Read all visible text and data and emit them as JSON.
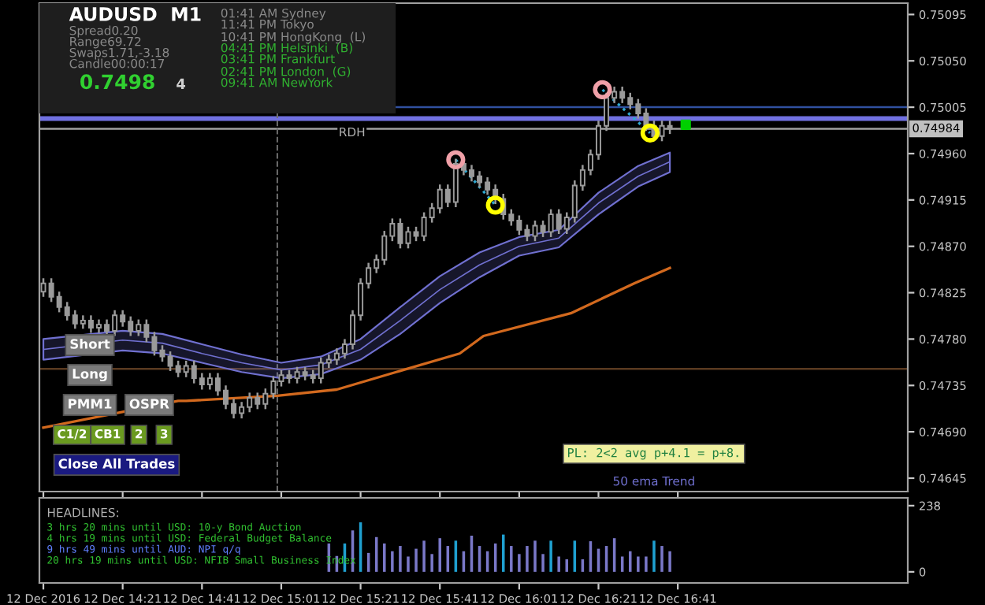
{
  "chart_data": [
    {
      "type": "candlestick",
      "color": "#9a9a9a",
      "x": [
        "2016-12-12T14:01",
        "2016-12-12T14:03",
        "2016-12-12T14:05",
        "2016-12-12T14:07",
        "2016-12-12T14:09",
        "2016-12-12T14:11",
        "2016-12-12T14:13",
        "2016-12-12T14:15",
        "2016-12-12T14:17",
        "2016-12-12T14:19",
        "2016-12-12T14:21",
        "2016-12-12T14:23",
        "2016-12-12T14:25",
        "2016-12-12T14:27",
        "2016-12-12T14:29",
        "2016-12-12T14:31",
        "2016-12-12T14:33",
        "2016-12-12T14:35",
        "2016-12-12T14:37",
        "2016-12-12T14:39",
        "2016-12-12T14:41",
        "2016-12-12T14:43",
        "2016-12-12T14:45",
        "2016-12-12T14:47",
        "2016-12-12T14:49",
        "2016-12-12T14:51",
        "2016-12-12T14:53",
        "2016-12-12T14:55",
        "2016-12-12T14:57",
        "2016-12-12T14:59",
        "2016-12-12T15:01",
        "2016-12-12T15:03",
        "2016-12-12T15:05",
        "2016-12-12T15:07",
        "2016-12-12T15:09",
        "2016-12-12T15:11",
        "2016-12-12T15:13",
        "2016-12-12T15:15",
        "2016-12-12T15:17",
        "2016-12-12T15:19",
        "2016-12-12T15:21",
        "2016-12-12T15:23",
        "2016-12-12T15:25",
        "2016-12-12T15:27",
        "2016-12-12T15:29",
        "2016-12-12T15:31",
        "2016-12-12T15:33",
        "2016-12-12T15:35",
        "2016-12-12T15:37",
        "2016-12-12T15:39",
        "2016-12-12T15:41",
        "2016-12-12T15:43",
        "2016-12-12T15:45",
        "2016-12-12T15:47",
        "2016-12-12T15:49",
        "2016-12-12T15:51",
        "2016-12-12T15:53",
        "2016-12-12T15:55",
        "2016-12-12T15:57",
        "2016-12-12T15:59",
        "2016-12-12T16:01",
        "2016-12-12T16:03",
        "2016-12-12T16:05",
        "2016-12-12T16:07",
        "2016-12-12T16:09",
        "2016-12-12T16:11",
        "2016-12-12T16:13",
        "2016-12-12T16:15",
        "2016-12-12T16:17",
        "2016-12-12T16:19",
        "2016-12-12T16:21",
        "2016-12-12T16:23",
        "2016-12-12T16:25",
        "2016-12-12T16:27",
        "2016-12-12T16:29",
        "2016-12-12T16:31",
        "2016-12-12T16:33",
        "2016-12-12T16:35",
        "2016-12-12T16:37",
        "2016-12-12T16:39"
      ],
      "ohlc": [
        [
          0.74826,
          0.74839,
          0.74821,
          0.74834
        ],
        [
          0.74834,
          0.74839,
          0.74816,
          0.74821
        ],
        [
          0.74821,
          0.74826,
          0.74806,
          0.74811
        ],
        [
          0.74811,
          0.74816,
          0.74798,
          0.74803
        ],
        [
          0.74803,
          0.74808,
          0.7479,
          0.74795
        ],
        [
          0.74795,
          0.74803,
          0.7479,
          0.74798
        ],
        [
          0.74798,
          0.74803,
          0.74786,
          0.74791
        ],
        [
          0.74791,
          0.74799,
          0.74786,
          0.74794
        ],
        [
          0.74794,
          0.74799,
          0.74783,
          0.74788
        ],
        [
          0.74788,
          0.74808,
          0.74783,
          0.74803
        ],
        [
          0.74803,
          0.74808,
          0.74792,
          0.74797
        ],
        [
          0.74797,
          0.74802,
          0.74783,
          0.74788
        ],
        [
          0.74788,
          0.74799,
          0.74783,
          0.74794
        ],
        [
          0.74794,
          0.74799,
          0.74777,
          0.74782
        ],
        [
          0.74782,
          0.74787,
          0.74764,
          0.74769
        ],
        [
          0.74769,
          0.74774,
          0.74758,
          0.74763
        ],
        [
          0.74763,
          0.74768,
          0.74749,
          0.74754
        ],
        [
          0.74754,
          0.74759,
          0.74743,
          0.74748
        ],
        [
          0.74748,
          0.74759,
          0.74743,
          0.74754
        ],
        [
          0.74754,
          0.74759,
          0.74737,
          0.74742
        ],
        [
          0.74742,
          0.74747,
          0.74731,
          0.74736
        ],
        [
          0.74736,
          0.74747,
          0.74731,
          0.74742
        ],
        [
          0.74742,
          0.74747,
          0.74725,
          0.7473
        ],
        [
          0.7473,
          0.74735,
          0.74712,
          0.74717
        ],
        [
          0.74717,
          0.74722,
          0.74703,
          0.74708
        ],
        [
          0.74708,
          0.74719,
          0.74703,
          0.74714
        ],
        [
          0.74714,
          0.74728,
          0.74709,
          0.74723
        ],
        [
          0.74723,
          0.74728,
          0.74712,
          0.74717
        ],
        [
          0.74717,
          0.74732,
          0.74712,
          0.74727
        ],
        [
          0.74727,
          0.74744,
          0.74722,
          0.74739
        ],
        [
          0.74739,
          0.7475,
          0.74734,
          0.74745
        ],
        [
          0.74745,
          0.7475,
          0.74737,
          0.74742
        ],
        [
          0.74742,
          0.74753,
          0.74737,
          0.74748
        ],
        [
          0.74748,
          0.74753,
          0.7474,
          0.74745
        ],
        [
          0.74745,
          0.7475,
          0.74737,
          0.74742
        ],
        [
          0.74742,
          0.74762,
          0.74737,
          0.74757
        ],
        [
          0.74757,
          0.74765,
          0.74752,
          0.7476
        ],
        [
          0.7476,
          0.74771,
          0.74755,
          0.74766
        ],
        [
          0.74766,
          0.7478,
          0.74761,
          0.74775
        ],
        [
          0.74775,
          0.74808,
          0.7477,
          0.74803
        ],
        [
          0.74803,
          0.74839,
          0.74798,
          0.74834
        ],
        [
          0.74834,
          0.74854,
          0.74829,
          0.74849
        ],
        [
          0.74849,
          0.74862,
          0.74844,
          0.74857
        ],
        [
          0.74857,
          0.74885,
          0.74852,
          0.7488
        ],
        [
          0.7488,
          0.74897,
          0.74875,
          0.74892
        ],
        [
          0.74892,
          0.74897,
          0.74868,
          0.74873
        ],
        [
          0.74873,
          0.74889,
          0.74868,
          0.74884
        ],
        [
          0.74884,
          0.74889,
          0.74875,
          0.7488
        ],
        [
          0.7488,
          0.74903,
          0.74875,
          0.74898
        ],
        [
          0.74898,
          0.74912,
          0.74893,
          0.74907
        ],
        [
          0.74907,
          0.7493,
          0.74902,
          0.74925
        ],
        [
          0.74925,
          0.7493,
          0.74908,
          0.74913
        ],
        [
          0.74913,
          0.74955,
          0.74908,
          0.7495
        ],
        [
          0.7495,
          0.74955,
          0.74939,
          0.74944
        ],
        [
          0.74944,
          0.74949,
          0.74933,
          0.74938
        ],
        [
          0.74938,
          0.74943,
          0.74927,
          0.74932
        ],
        [
          0.74932,
          0.74937,
          0.7492,
          0.74925
        ],
        [
          0.74925,
          0.7493,
          0.74911,
          0.74916
        ],
        [
          0.74916,
          0.74921,
          0.74896,
          0.74901
        ],
        [
          0.74901,
          0.74906,
          0.7489,
          0.74895
        ],
        [
          0.74895,
          0.749,
          0.74881,
          0.74886
        ],
        [
          0.74886,
          0.74891,
          0.74875,
          0.7488
        ],
        [
          0.7488,
          0.74895,
          0.74875,
          0.7489
        ],
        [
          0.7489,
          0.74895,
          0.74879,
          0.74884
        ],
        [
          0.74884,
          0.74906,
          0.74879,
          0.74901
        ],
        [
          0.74901,
          0.74906,
          0.74882,
          0.74887
        ],
        [
          0.74887,
          0.74903,
          0.74882,
          0.74898
        ],
        [
          0.74898,
          0.74934,
          0.74893,
          0.74929
        ],
        [
          0.74929,
          0.74949,
          0.74924,
          0.74944
        ],
        [
          0.74944,
          0.74964,
          0.74939,
          0.74959
        ],
        [
          0.74959,
          0.74992,
          0.74954,
          0.74987
        ],
        [
          0.74987,
          0.75019,
          0.74982,
          0.75014
        ],
        [
          0.75014,
          0.75025,
          0.75009,
          0.7502
        ],
        [
          0.7502,
          0.75025,
          0.75009,
          0.75014
        ],
        [
          0.75014,
          0.75019,
          0.75003,
          0.75008
        ],
        [
          0.75008,
          0.75013,
          0.74994,
          0.74999
        ],
        [
          0.74999,
          0.75004,
          0.74982,
          0.74987
        ],
        [
          0.74987,
          0.74992,
          0.74972,
          0.74977
        ],
        [
          0.74977,
          0.74992,
          0.74972,
          0.74987
        ],
        [
          0.74987,
          0.74992,
          0.74979,
          0.74984
        ]
      ],
      "series": [
        {
          "type": "line",
          "color": "#d2691e",
          "x": [
            "2016-12-12T14:01",
            "2016-12-12T14:35",
            "2016-12-12T14:37",
            "2016-12-12T15:00",
            "2016-12-12T15:15",
            "2016-12-12T15:30",
            "2016-12-12T15:46",
            "2016-12-12T15:52",
            "2016-12-12T16:14",
            "2016-12-12T16:30",
            "2016-12-12T16:39"
          ],
          "values": [
            0.74694,
            0.7472,
            0.7472,
            0.74725,
            0.74731,
            0.74748,
            0.74766,
            0.74783,
            0.74805,
            0.74834,
            0.74849
          ]
        },
        {
          "type": "line",
          "color": "#7070d0",
          "x": [
            "2016-12-12T14:01",
            "2016-12-12T14:21",
            "2016-12-12T14:31",
            "2016-12-12T14:41",
            "2016-12-12T14:51",
            "2016-12-12T15:01",
            "2016-12-12T15:11",
            "2016-12-12T15:21",
            "2016-12-12T15:31",
            "2016-12-12T15:41",
            "2016-12-12T15:51",
            "2016-12-12T16:01",
            "2016-12-12T16:11",
            "2016-12-12T16:21",
            "2016-12-12T16:31",
            "2016-12-12T16:39"
          ],
          "values": [
            0.7477,
            0.74779,
            0.74776,
            0.74766,
            0.74757,
            0.7475,
            0.74755,
            0.7477,
            0.74798,
            0.74828,
            0.74852,
            0.7487,
            0.74878,
            0.74912,
            0.74938,
            0.74952
          ],
          "lower": [
            0.7476,
            0.74769,
            0.74766,
            0.74757,
            0.74748,
            0.74742,
            0.74746,
            0.7476,
            0.74785,
            0.74815,
            0.7484,
            0.74861,
            0.74869,
            0.74901,
            0.74928,
            0.74942
          ],
          "upper": [
            0.7478,
            0.74788,
            0.74785,
            0.74775,
            0.74765,
            0.74757,
            0.74763,
            0.7478,
            0.74811,
            0.74841,
            0.74864,
            0.74879,
            0.74886,
            0.74922,
            0.74948,
            0.74961
          ]
        },
        {
          "type": "line",
          "color": "#30a8d0",
          "line_style": "dotted",
          "x": [
            "2016-12-12T15:45",
            "2016-12-12T15:55",
            "2016-12-12T16:00",
            "2016-12-12T16:22",
            "2016-12-12T16:34"
          ],
          "values": [
            0.74954,
            0.7491,
            null,
            0.75022,
            0.7498
          ]
        },
        {
          "type": "scatter",
          "marker": "circle",
          "color": "#f0a0a8",
          "x": [
            "2016-12-12T15:45",
            "2016-12-12T16:22"
          ],
          "values": [
            0.74954,
            0.75022
          ]
        },
        {
          "type": "scatter",
          "marker": "circle",
          "color": "#ffff00",
          "x": [
            "2016-12-12T15:55",
            "2016-12-12T16:34"
          ],
          "values": [
            0.7491,
            0.7498
          ]
        },
        {
          "type": "scatter",
          "marker": "square",
          "color": "#00d000",
          "x": [
            "2016-12-12T16:43"
          ],
          "values": [
            0.74988
          ]
        }
      ],
      "xlim": [
        "2016-12-12T14:00",
        "2016-12-12T17:39"
      ],
      "xticks": [
        {
          "value": "2016-12-12T14:01",
          "label": null
        },
        {
          "value": "2016-12-12T14:21",
          "label": null
        },
        {
          "value": "2016-12-12T14:41",
          "label": null
        },
        {
          "value": "2016-12-12T15:01",
          "label": null
        },
        {
          "value": "2016-12-12T15:21",
          "label": null
        },
        {
          "value": "2016-12-12T15:41",
          "label": null
        },
        {
          "value": "2016-12-12T16:01",
          "label": null
        },
        {
          "value": "2016-12-12T16:21",
          "label": null
        },
        {
          "value": "2016-12-12T16:41",
          "label": null
        }
      ],
      "ylim": [
        0.74632,
        0.75106
      ],
      "yticks": [
        0.75095,
        {
          "value": 0.7505,
          "label": "0.75050"
        },
        0.75005,
        {
          "value": 0.7496,
          "label": "0.74960"
        },
        0.74915,
        {
          "value": 0.7487,
          "label": "0.74870"
        },
        0.74825,
        {
          "value": 0.7478,
          "label": "0.74780"
        },
        0.74735,
        {
          "value": 0.7469,
          "label": "0.74690"
        },
        0.74645
      ],
      "tick_labels": "y",
      "ref_lines": [
        {
          "axis": "y",
          "value": 0.74994,
          "label": "RDH",
          "color": "#7070e0"
        },
        {
          "axis": "y",
          "value": 0.74984,
          "label": "0.74984",
          "color": "#a0a0a0"
        },
        {
          "axis": "y",
          "value": 0.75005,
          "color": "#3050a0"
        },
        {
          "axis": "y",
          "value": 0.74751,
          "color": "#5a3a20"
        },
        {
          "axis": "x",
          "value": "2016-12-12T15:00",
          "color": "#707070",
          "line_style": "dashed"
        }
      ],
      "annotations": [
        "AUDUSD  M1",
        "Spread0.20",
        "Range69.72",
        "Swaps1.71,-3.18",
        "Candle00:00:17",
        "0.7498",
        "4",
        "01:41 AM Sydney",
        "11:41 PM Tokyo",
        "10:41 PM HongKong  (L)",
        "04:41 PM Helsinki  (B)",
        "03:41 PM Frankfurt",
        "02:41 PM London  (G)",
        "09:41 AM NewYork",
        "Short",
        "Long",
        "PMM1",
        "OSPR",
        "C1/2",
        "CB1",
        "2",
        "3",
        "Close All Trades",
        "PL: 2<2 avg p+4.1 = p+8.",
        "50 ema Trend"
      ]
    },
    {
      "type": "bar",
      "x": [
        "2016-12-12T15:13",
        "2016-12-12T15:15",
        "2016-12-12T15:17",
        "2016-12-12T15:19",
        "2016-12-12T15:21",
        "2016-12-12T15:23",
        "2016-12-12T15:25",
        "2016-12-12T15:27",
        "2016-12-12T15:29",
        "2016-12-12T15:31",
        "2016-12-12T15:33",
        "2016-12-12T15:35",
        "2016-12-12T15:37",
        "2016-12-12T15:39",
        "2016-12-12T15:41",
        "2016-12-12T15:43",
        "2016-12-12T15:45",
        "2016-12-12T15:47",
        "2016-12-12T15:49",
        "2016-12-12T15:51",
        "2016-12-12T15:53",
        "2016-12-12T15:55",
        "2016-12-12T15:57",
        "2016-12-12T15:59",
        "2016-12-12T16:01",
        "2016-12-12T16:03",
        "2016-12-12T16:05",
        "2016-12-12T16:07",
        "2016-12-12T16:09",
        "2016-12-12T16:11",
        "2016-12-12T16:13",
        "2016-12-12T16:15",
        "2016-12-12T16:17",
        "2016-12-12T16:19",
        "2016-12-12T16:21",
        "2016-12-12T16:23",
        "2016-12-12T16:25",
        "2016-12-12T16:27",
        "2016-12-12T16:29",
        "2016-12-12T16:31",
        "2016-12-12T16:33",
        "2016-12-12T16:35",
        "2016-12-12T16:37",
        "2016-12-12T16:39"
      ],
      "values": [
        102,
        57,
        102,
        149,
        178,
        68,
        125,
        102,
        74,
        93,
        55,
        83,
        112,
        64,
        121,
        93,
        112,
        74,
        130,
        93,
        74,
        102,
        134,
        93,
        64,
        93,
        112,
        64,
        112,
        55,
        45,
        112,
        45,
        110,
        83,
        93,
        121,
        55,
        74,
        55,
        55,
        112,
        93,
        74
      ],
      "colors": [
        "#7a78c8",
        "#7a78c8",
        "#1fa0d0",
        "#7a78c8",
        "#1fa0d0",
        "#7a78c8",
        "#7a78c8",
        "#7a78c8",
        "#7a78c8",
        "#7a78c8",
        "#7a78c8",
        "#7a78c8",
        "#7a78c8",
        "#7a78c8",
        "#7a78c8",
        "#7a78c8",
        "#1fa0d0",
        "#7a78c8",
        "#7a78c8",
        "#7a78c8",
        "#7a78c8",
        "#7a78c8",
        "#1fa0d0",
        "#7a78c8",
        "#7a78c8",
        "#7a78c8",
        "#7a78c8",
        "#7a78c8",
        "#1fa0d0",
        "#7a78c8",
        "#7a78c8",
        "#1fa0d0",
        "#7a78c8",
        "#7a78c8",
        "#7a78c8",
        "#7a78c8",
        "#7a78c8",
        "#7a78c8",
        "#7a78c8",
        "#7a78c8",
        "#7a78c8",
        "#1fa0d0",
        "#7a78c8",
        "#7a78c8"
      ],
      "xlim": [
        "2016-12-12T14:00",
        "2016-12-12T17:39"
      ],
      "xticks": [
        {
          "value": "2016-12-12T14:01",
          "label": "12 Dec 2016"
        },
        {
          "value": "2016-12-12T14:21",
          "label": "12 Dec 14:21"
        },
        {
          "value": "2016-12-12T14:41",
          "label": "12 Dec 14:41"
        },
        {
          "value": "2016-12-12T15:01",
          "label": "12 Dec 15:01"
        },
        {
          "value": "2016-12-12T15:21",
          "label": "12 Dec 15:21"
        },
        {
          "value": "2016-12-12T15:41",
          "label": "12 Dec 15:41"
        },
        {
          "value": "2016-12-12T16:01",
          "label": "12 Dec 16:01"
        },
        {
          "value": "2016-12-12T16:21",
          "label": "12 Dec 16:21"
        },
        {
          "value": "2016-12-12T16:41",
          "label": "12 Dec 16:41"
        }
      ],
      "ylim": [
        -40,
        266
      ],
      "yticks": [
        0,
        238
      ],
      "annotations": [
        "HEADLINES:",
        "3 hrs 20 mins until USD: 10-y Bond Auction",
        "4 hrs 19 mins until USD: Federal Budget Balance",
        "9 hrs 49 mins until AUD: NPI q/q",
        "20 hrs 19 mins until USD: NFIB Small Business Index"
      ]
    }
  ]
}
